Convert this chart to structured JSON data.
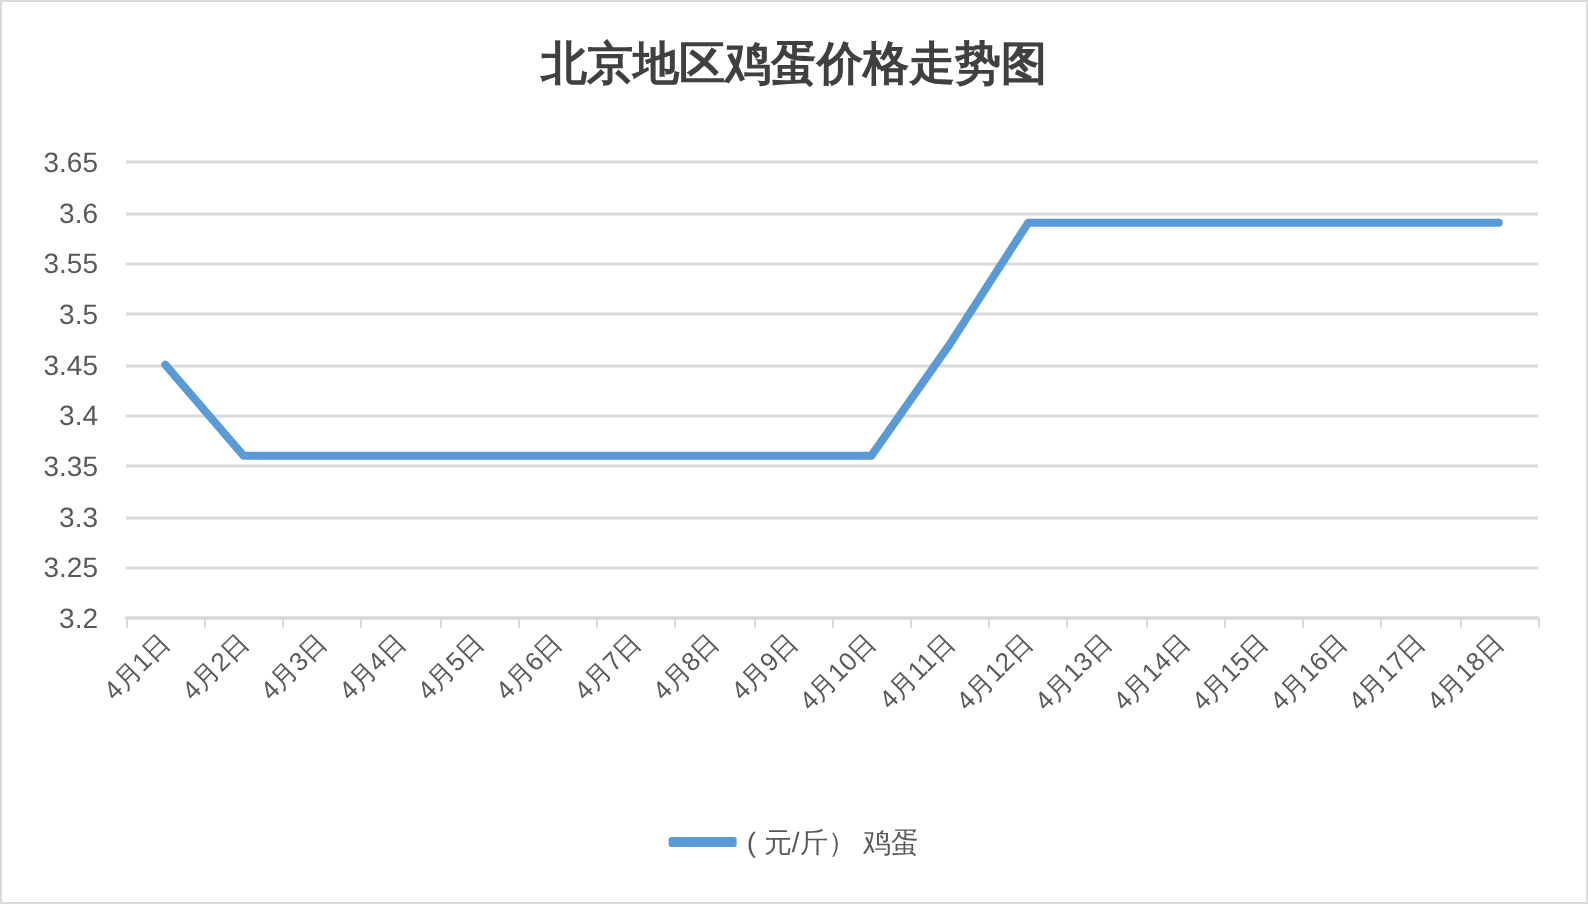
{
  "chart_data": {
    "type": "line",
    "title": "北京地区鸡蛋价格走势图",
    "categories": [
      "4月1日",
      "4月2日",
      "4月3日",
      "4月4日",
      "4月5日",
      "4月6日",
      "4月7日",
      "4月8日",
      "4月9日",
      "4月10日",
      "4月11日",
      "4月12日",
      "4月13日",
      "4月14日",
      "4月15日",
      "4月16日",
      "4月17日",
      "4月18日"
    ],
    "series": [
      {
        "name": "( 元/斤） 鸡蛋",
        "color": "#5b9bd5",
        "values": [
          3.45,
          3.36,
          3.36,
          3.36,
          3.36,
          3.36,
          3.36,
          3.36,
          3.36,
          3.36,
          3.47,
          3.59,
          3.59,
          3.59,
          3.59,
          3.59,
          3.59,
          3.59
        ]
      }
    ],
    "ylim": [
      3.2,
      3.65
    ],
    "yticks": [
      3.2,
      3.25,
      3.3,
      3.35,
      3.4,
      3.45,
      3.5,
      3.55,
      3.6,
      3.65
    ],
    "grid": "y",
    "legend": "bottom",
    "marker": "none",
    "line_style": "solid"
  }
}
